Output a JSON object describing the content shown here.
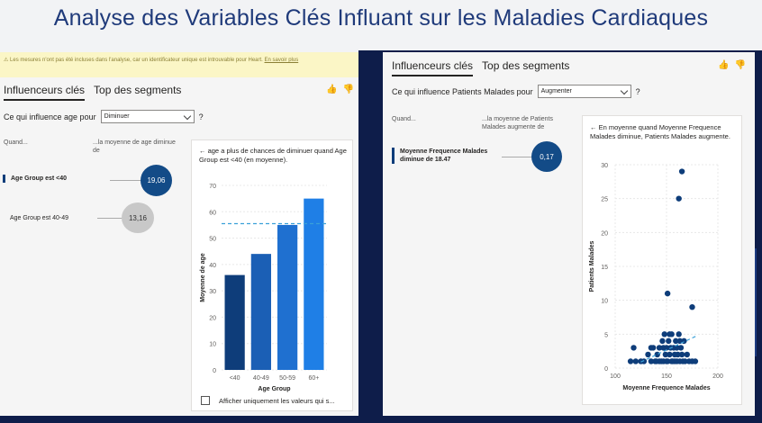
{
  "page": {
    "title": "Analyse des Variables Clés Influant sur les Maladies Cardiaques"
  },
  "left": {
    "warning_text": "Les mesures n'ont pas été incluses dans l'analyse, car un identificateur unique est introuvable pour Heart.",
    "warning_link": "En savoir plus",
    "tabs": [
      {
        "label": "Influenceurs clés",
        "active": true
      },
      {
        "label": "Top des segments",
        "active": false
      }
    ],
    "question_label": "Ce qui influence age pour",
    "dropdown_value": "Diminuer",
    "help": "?",
    "col_when": "Quand...",
    "col_avg": "...la moyenne de age diminue de",
    "influencers": [
      {
        "label": "Age Group est <40",
        "value": "19,06",
        "selected": true
      },
      {
        "label": "Age Group est 40-49",
        "value": "13,16",
        "selected": false
      }
    ],
    "card": {
      "back_arrow": "←",
      "text": "age a plus de chances de diminuer quand Age Group est <40 (en moyenne).",
      "checkbox_label": "Afficher uniquement les valeurs qui s..."
    }
  },
  "right": {
    "tabs": [
      {
        "label": "Influenceurs clés",
        "active": true
      },
      {
        "label": "Top des segments",
        "active": false
      }
    ],
    "question_label": "Ce qui influence Patients Malades pour",
    "dropdown_value": "Augmenter",
    "help": "?",
    "col_when": "Quand...",
    "col_avg": "...la moyenne de Patients Malades augmente de",
    "influencers": [
      {
        "label": "Moyenne Frequence Malades diminue de 18.47",
        "value": "0,17",
        "selected": true
      }
    ],
    "card": {
      "back_arrow": "←",
      "text": "En moyenne quand Moyenne Frequence Malades diminue, Patients Malades augmente."
    }
  },
  "chart_data": [
    {
      "type": "bar",
      "categories": [
        "<40",
        "40-49",
        "50-59",
        "60+"
      ],
      "values": [
        36,
        44,
        55,
        65
      ],
      "colors": [
        "#0e3d7a",
        "#1b5fb5",
        "#1f70d0",
        "#1f7fe6"
      ],
      "average_line": 55.5,
      "xlabel": "Age Group",
      "ylabel": "Moyenne de age",
      "ylim": [
        0,
        70
      ],
      "yticks": [
        0,
        10,
        20,
        30,
        40,
        50,
        60,
        70
      ],
      "grid": true
    },
    {
      "type": "scatter",
      "xlabel": "Moyenne Frequence Malades",
      "ylabel": "Patients Malades",
      "xlim": [
        100,
        200
      ],
      "ylim": [
        0,
        30
      ],
      "xticks": [
        100,
        150,
        200
      ],
      "yticks": [
        0,
        5,
        10,
        15,
        20,
        25,
        30
      ],
      "grid": true,
      "trend": [
        [
          125,
          0.9
        ],
        [
          180,
          4.8
        ]
      ],
      "points": [
        [
          165,
          29
        ],
        [
          162,
          25
        ],
        [
          151,
          11
        ],
        [
          175,
          9
        ],
        [
          115,
          1
        ],
        [
          118,
          3
        ],
        [
          120,
          1
        ],
        [
          125,
          1
        ],
        [
          128,
          1
        ],
        [
          132,
          2
        ],
        [
          135,
          1
        ],
        [
          137,
          3
        ],
        [
          139,
          1
        ],
        [
          141,
          2
        ],
        [
          143,
          1
        ],
        [
          145,
          1
        ],
        [
          146,
          4
        ],
        [
          147,
          3
        ],
        [
          148,
          5
        ],
        [
          149,
          2
        ],
        [
          150,
          3
        ],
        [
          151,
          1
        ],
        [
          152,
          4
        ],
        [
          153,
          2
        ],
        [
          154,
          3
        ],
        [
          155,
          5
        ],
        [
          156,
          1
        ],
        [
          157,
          3
        ],
        [
          158,
          2
        ],
        [
          159,
          4
        ],
        [
          160,
          1
        ],
        [
          161,
          2
        ],
        [
          162,
          5
        ],
        [
          163,
          1
        ],
        [
          164,
          3
        ],
        [
          165,
          2
        ],
        [
          166,
          1
        ],
        [
          167,
          4
        ],
        [
          168,
          1
        ],
        [
          170,
          2
        ],
        [
          172,
          1
        ],
        [
          175,
          1
        ],
        [
          178,
          1
        ],
        [
          147,
          1
        ],
        [
          158,
          1
        ],
        [
          135,
          3
        ],
        [
          143,
          3
        ],
        [
          153,
          5
        ],
        [
          163,
          4
        ],
        [
          140,
          1
        ],
        [
          150,
          1
        ],
        [
          155,
          1
        ],
        [
          160,
          3
        ]
      ]
    }
  ]
}
